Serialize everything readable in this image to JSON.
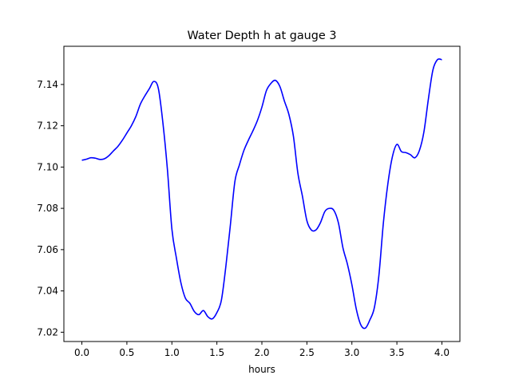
{
  "chart_data": {
    "type": "line",
    "title": "Water Depth h at gauge 3",
    "xlabel": "hours",
    "ylabel": "",
    "xlim": [
      -0.2,
      4.2
    ],
    "ylim": [
      7.0155,
      7.1585
    ],
    "xticks": [
      0.0,
      0.5,
      1.0,
      1.5,
      2.0,
      2.5,
      3.0,
      3.5,
      4.0
    ],
    "xtick_labels": [
      "0.0",
      "0.5",
      "1.0",
      "1.5",
      "2.0",
      "2.5",
      "3.0",
      "3.5",
      "4.0"
    ],
    "yticks": [
      7.02,
      7.04,
      7.06,
      7.08,
      7.1,
      7.12,
      7.14
    ],
    "ytick_labels": [
      "7.02",
      "7.04",
      "7.06",
      "7.08",
      "7.10",
      "7.12",
      "7.14"
    ],
    "grid": false,
    "series": [
      {
        "color": "#0000ff",
        "x": [
          0.0,
          0.05,
          0.1,
          0.15,
          0.2,
          0.25,
          0.3,
          0.35,
          0.4,
          0.45,
          0.5,
          0.55,
          0.6,
          0.65,
          0.7,
          0.75,
          0.8,
          0.85,
          0.9,
          0.95,
          1.0,
          1.05,
          1.1,
          1.15,
          1.2,
          1.25,
          1.3,
          1.35,
          1.4,
          1.45,
          1.5,
          1.55,
          1.6,
          1.65,
          1.7,
          1.75,
          1.8,
          1.85,
          1.9,
          1.95,
          2.0,
          2.05,
          2.1,
          2.15,
          2.2,
          2.25,
          2.3,
          2.35,
          2.4,
          2.45,
          2.5,
          2.55,
          2.6,
          2.65,
          2.7,
          2.75,
          2.8,
          2.85,
          2.9,
          2.95,
          3.0,
          3.05,
          3.1,
          3.15,
          3.2,
          3.25,
          3.3,
          3.35,
          3.4,
          3.45,
          3.5,
          3.55,
          3.6,
          3.65,
          3.7,
          3.75,
          3.8,
          3.85,
          3.9,
          3.95,
          4.0
        ],
        "y": [
          7.1033,
          7.1038,
          7.1045,
          7.1043,
          7.1037,
          7.104,
          7.1055,
          7.1078,
          7.11,
          7.113,
          7.1165,
          7.12,
          7.1245,
          7.1305,
          7.1345,
          7.138,
          7.1415,
          7.138,
          7.1215,
          7.099,
          7.07,
          7.056,
          7.044,
          7.0365,
          7.034,
          7.03,
          7.0285,
          7.0305,
          7.0275,
          7.0265,
          7.0295,
          7.0355,
          7.052,
          7.072,
          7.093,
          7.101,
          7.108,
          7.113,
          7.1175,
          7.1225,
          7.129,
          7.137,
          7.1405,
          7.142,
          7.139,
          7.132,
          7.1255,
          7.115,
          7.097,
          7.086,
          7.074,
          7.0695,
          7.0695,
          7.073,
          7.0785,
          7.08,
          7.079,
          7.073,
          7.061,
          7.053,
          7.043,
          7.031,
          7.0235,
          7.022,
          7.026,
          7.032,
          7.0475,
          7.073,
          7.092,
          7.105,
          7.111,
          7.1075,
          7.107,
          7.106,
          7.1045,
          7.108,
          7.117,
          7.133,
          7.147,
          7.152,
          7.152
        ]
      }
    ]
  }
}
